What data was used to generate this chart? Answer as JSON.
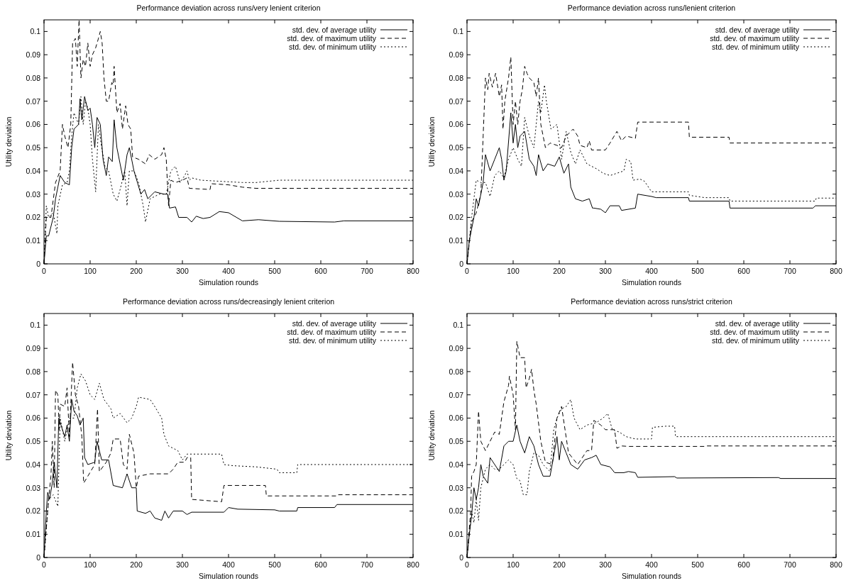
{
  "chart_data": [
    {
      "type": "line",
      "title": "Performance deviation across runs/very lenient criterion",
      "xlabel": "Simulation rounds",
      "ylabel": "Utility deviation",
      "xlim": [
        0,
        800
      ],
      "ylim": [
        0,
        0.105
      ],
      "xticks": [
        0,
        100,
        200,
        300,
        400,
        500,
        600,
        700,
        800
      ],
      "yticks": [
        0,
        0.01,
        0.02,
        0.03,
        0.04,
        0.05,
        0.06,
        0.07,
        0.08,
        0.09,
        0.1
      ],
      "legend": "top right",
      "series": [
        {
          "name": "std. dev. of average utility",
          "color": "#000000",
          "line_style": "solid",
          "x": [
            0,
            5,
            10,
            20,
            25,
            30,
            35,
            45,
            55,
            60,
            65,
            75,
            78,
            82,
            88,
            95,
            100,
            105,
            110,
            115,
            122,
            128,
            135,
            140,
            148,
            152,
            158,
            165,
            172,
            180,
            185,
            195,
            210,
            218,
            225,
            240,
            260,
            268,
            272,
            285,
            292,
            310,
            320,
            330,
            345,
            360,
            380,
            400,
            430,
            465,
            510,
            630,
            650,
            800
          ],
          "values": [
            0,
            0.012,
            0.012,
            0.02,
            0.028,
            0.033,
            0.038,
            0.035,
            0.034,
            0.05,
            0.058,
            0.06,
            0.071,
            0.062,
            0.072,
            0.066,
            0.067,
            0.06,
            0.05,
            0.063,
            0.06,
            0.045,
            0.038,
            0.046,
            0.044,
            0.062,
            0.05,
            0.043,
            0.036,
            0.047,
            0.05,
            0.04,
            0.03,
            0.032,
            0.028,
            0.031,
            0.03,
            0.03,
            0.024,
            0.0245,
            0.02,
            0.02,
            0.018,
            0.0205,
            0.0195,
            0.02,
            0.0225,
            0.022,
            0.0185,
            0.019,
            0.0183,
            0.018,
            0.0185,
            0.0185
          ]
        },
        {
          "name": "std. dev. of maximum utility",
          "color": "#000000",
          "line_style": "dashed",
          "x": [
            0,
            5,
            15,
            25,
            35,
            40,
            45,
            52,
            58,
            62,
            68,
            72,
            76,
            80,
            85,
            90,
            95,
            100,
            105,
            112,
            118,
            122,
            126,
            130,
            135,
            140,
            147,
            150,
            152,
            158,
            165,
            170,
            177,
            182,
            188,
            192,
            205,
            220,
            228,
            240,
            255,
            260,
            265,
            270,
            275,
            285,
            300,
            310,
            315,
            360,
            362,
            400,
            430,
            460,
            650,
            800
          ],
          "values": [
            0,
            0.02,
            0.02,
            0.035,
            0.04,
            0.06,
            0.055,
            0.05,
            0.06,
            0.095,
            0.097,
            0.085,
            0.105,
            0.08,
            0.088,
            0.085,
            0.095,
            0.085,
            0.09,
            0.093,
            0.097,
            0.1,
            0.095,
            0.08,
            0.07,
            0.07,
            0.078,
            0.077,
            0.085,
            0.065,
            0.069,
            0.058,
            0.068,
            0.06,
            0.058,
            0.046,
            0.045,
            0.043,
            0.047,
            0.045,
            0.047,
            0.05,
            0.045,
            0.025,
            0.036,
            0.035,
            0.036,
            0.037,
            0.0325,
            0.032,
            0.0345,
            0.034,
            0.033,
            0.0325,
            0.0325,
            0.0325
          ]
        },
        {
          "name": "std. dev. of minimum utility",
          "color": "#000000",
          "line_style": "dotted",
          "x": [
            0,
            5,
            10,
            20,
            28,
            30,
            40,
            50,
            55,
            60,
            65,
            75,
            80,
            85,
            90,
            95,
            100,
            105,
            110,
            112,
            118,
            125,
            132,
            140,
            150,
            158,
            165,
            175,
            180,
            185,
            195,
            205,
            215,
            220,
            230,
            250,
            265,
            275,
            285,
            295,
            305,
            310,
            315,
            320,
            340,
            430,
            460,
            510,
            800
          ],
          "values": [
            0,
            0.025,
            0.02,
            0.022,
            0.013,
            0.025,
            0.034,
            0.035,
            0.04,
            0.055,
            0.065,
            0.06,
            0.072,
            0.06,
            0.07,
            0.067,
            0.06,
            0.045,
            0.035,
            0.031,
            0.06,
            0.05,
            0.042,
            0.04,
            0.03,
            0.027,
            0.032,
            0.04,
            0.025,
            0.04,
            0.04,
            0.035,
            0.025,
            0.018,
            0.028,
            0.03,
            0.03,
            0.04,
            0.042,
            0.035,
            0.038,
            0.04,
            0.036,
            0.037,
            0.036,
            0.035,
            0.035,
            0.036,
            0.036
          ]
        }
      ]
    },
    {
      "type": "line",
      "title": "Performance deviation across runs/lenient criterion",
      "xlabel": "Simulation rounds",
      "ylabel": "Utility deviation",
      "xlim": [
        0,
        800
      ],
      "ylim": [
        0,
        0.105
      ],
      "xticks": [
        0,
        100,
        200,
        300,
        400,
        500,
        600,
        700,
        800
      ],
      "yticks": [
        0,
        0.01,
        0.02,
        0.03,
        0.04,
        0.05,
        0.06,
        0.07,
        0.08,
        0.09,
        0.1
      ],
      "legend": "top right",
      "series": [
        {
          "name": "std. dev. of average utility",
          "color": "#000000",
          "line_style": "solid",
          "x": [
            0,
            5,
            10,
            15,
            20,
            25,
            30,
            35,
            40,
            50,
            60,
            70,
            75,
            80,
            85,
            95,
            100,
            105,
            110,
            115,
            125,
            135,
            145,
            150,
            155,
            165,
            175,
            190,
            200,
            210,
            220,
            225,
            235,
            250,
            265,
            272,
            275,
            290,
            300,
            310,
            330,
            335,
            365,
            370,
            400,
            410,
            480,
            482,
            568,
            570,
            750,
            755,
            800
          ],
          "values": [
            0,
            0.01,
            0.015,
            0.02,
            0.028,
            0.025,
            0.03,
            0.035,
            0.047,
            0.04,
            0.045,
            0.05,
            0.045,
            0.036,
            0.04,
            0.065,
            0.052,
            0.06,
            0.05,
            0.055,
            0.057,
            0.045,
            0.042,
            0.038,
            0.047,
            0.04,
            0.043,
            0.042,
            0.046,
            0.039,
            0.043,
            0.033,
            0.028,
            0.027,
            0.028,
            0.024,
            0.024,
            0.0235,
            0.022,
            0.025,
            0.025,
            0.023,
            0.024,
            0.03,
            0.029,
            0.0285,
            0.0285,
            0.027,
            0.027,
            0.024,
            0.024,
            0.025,
            0.025
          ]
        },
        {
          "name": "std. dev. of maximum utility",
          "color": "#000000",
          "line_style": "dashed",
          "x": [
            0,
            10,
            20,
            30,
            35,
            40,
            45,
            48,
            55,
            62,
            70,
            75,
            78,
            82,
            90,
            95,
            100,
            105,
            110,
            115,
            120,
            125,
            130,
            135,
            145,
            150,
            155,
            160,
            170,
            180,
            195,
            205,
            215,
            230,
            240,
            245,
            260,
            265,
            270,
            300,
            310,
            325,
            335,
            345,
            365,
            370,
            480,
            482,
            568,
            570,
            800
          ],
          "values": [
            0,
            0.018,
            0.022,
            0.03,
            0.055,
            0.08,
            0.075,
            0.082,
            0.076,
            0.082,
            0.072,
            0.077,
            0.058,
            0.07,
            0.08,
            0.089,
            0.06,
            0.07,
            0.06,
            0.07,
            0.075,
            0.085,
            0.082,
            0.08,
            0.078,
            0.072,
            0.08,
            0.06,
            0.05,
            0.052,
            0.051,
            0.05,
            0.055,
            0.058,
            0.055,
            0.051,
            0.05,
            0.053,
            0.049,
            0.049,
            0.052,
            0.057,
            0.053,
            0.055,
            0.054,
            0.061,
            0.061,
            0.0545,
            0.0545,
            0.052,
            0.052
          ]
        },
        {
          "name": "std. dev. of minimum utility",
          "color": "#000000",
          "line_style": "dotted",
          "x": [
            0,
            10,
            20,
            30,
            40,
            50,
            60,
            70,
            80,
            90,
            100,
            110,
            118,
            125,
            135,
            145,
            155,
            160,
            168,
            172,
            182,
            195,
            205,
            215,
            225,
            235,
            245,
            260,
            280,
            295,
            310,
            340,
            345,
            355,
            360,
            375,
            385,
            400,
            480,
            482,
            515,
            568,
            570,
            755,
            757,
            800
          ],
          "values": [
            0,
            0.02,
            0.036,
            0.035,
            0.035,
            0.029,
            0.038,
            0.04,
            0.037,
            0.045,
            0.05,
            0.045,
            0.042,
            0.063,
            0.055,
            0.05,
            0.07,
            0.065,
            0.077,
            0.07,
            0.058,
            0.06,
            0.045,
            0.057,
            0.048,
            0.043,
            0.049,
            0.043,
            0.041,
            0.039,
            0.038,
            0.04,
            0.045,
            0.044,
            0.036,
            0.0365,
            0.0355,
            0.031,
            0.031,
            0.0295,
            0.0285,
            0.0285,
            0.027,
            0.027,
            0.0283,
            0.0283
          ]
        }
      ]
    },
    {
      "type": "line",
      "title": "Performance deviation across runs/decreasingly lenient criterion",
      "xlabel": "Simulation rounds",
      "ylabel": "Utility deviation",
      "xlim": [
        0,
        800
      ],
      "ylim": [
        0,
        0.105
      ],
      "xticks": [
        0,
        100,
        200,
        300,
        400,
        500,
        600,
        700,
        800
      ],
      "yticks": [
        0,
        0.01,
        0.02,
        0.03,
        0.04,
        0.05,
        0.06,
        0.07,
        0.08,
        0.09,
        0.1
      ],
      "legend": "top right",
      "series": [
        {
          "name": "std. dev. of average utility",
          "color": "#000000",
          "line_style": "solid",
          "x": [
            0,
            5,
            8,
            12,
            18,
            22,
            28,
            32,
            40,
            45,
            50,
            55,
            60,
            65,
            72,
            78,
            85,
            88,
            95,
            110,
            115,
            125,
            140,
            150,
            170,
            180,
            190,
            200,
            202,
            220,
            230,
            240,
            255,
            262,
            270,
            280,
            300,
            310,
            320,
            390,
            400,
            420,
            500,
            510,
            548,
            550,
            630,
            635,
            800
          ],
          "values": [
            0,
            0.02,
            0.028,
            0.025,
            0.032,
            0.041,
            0.03,
            0.06,
            0.055,
            0.052,
            0.057,
            0.05,
            0.068,
            0.063,
            0.061,
            0.057,
            0.06,
            0.043,
            0.04,
            0.041,
            0.05,
            0.042,
            0.042,
            0.031,
            0.03,
            0.036,
            0.03,
            0.03,
            0.02,
            0.019,
            0.02,
            0.017,
            0.016,
            0.02,
            0.017,
            0.02,
            0.02,
            0.0185,
            0.0195,
            0.0195,
            0.0215,
            0.0208,
            0.0205,
            0.02,
            0.02,
            0.0215,
            0.0215,
            0.0228,
            0.0228
          ]
        },
        {
          "name": "std. dev. of maximum utility",
          "color": "#000000",
          "line_style": "dashed",
          "x": [
            0,
            10,
            15,
            18,
            22,
            25,
            30,
            33,
            35,
            45,
            50,
            55,
            62,
            68,
            75,
            82,
            86,
            95,
            110,
            116,
            120,
            135,
            145,
            150,
            165,
            172,
            180,
            185,
            195,
            200,
            205,
            230,
            270,
            280,
            290,
            305,
            310,
            318,
            320,
            385,
            390,
            480,
            482,
            635,
            637,
            800
          ],
          "values": [
            0,
            0.025,
            0.035,
            0.05,
            0.03,
            0.072,
            0.07,
            0.055,
            0.066,
            0.065,
            0.073,
            0.052,
            0.084,
            0.07,
            0.065,
            0.052,
            0.032,
            0.035,
            0.04,
            0.064,
            0.037,
            0.041,
            0.045,
            0.051,
            0.051,
            0.04,
            0.038,
            0.053,
            0.045,
            0.03,
            0.035,
            0.036,
            0.036,
            0.038,
            0.041,
            0.041,
            0.043,
            0.043,
            0.025,
            0.024,
            0.031,
            0.031,
            0.0265,
            0.0265,
            0.027,
            0.027
          ]
        },
        {
          "name": "std. dev. of minimum utility",
          "color": "#000000",
          "line_style": "dotted",
          "x": [
            0,
            10,
            20,
            30,
            35,
            45,
            55,
            65,
            72,
            80,
            90,
            100,
            110,
            120,
            130,
            145,
            150,
            165,
            180,
            190,
            200,
            205,
            230,
            240,
            255,
            260,
            270,
            290,
            300,
            310,
            385,
            390,
            410,
            460,
            505,
            510,
            548,
            550,
            800
          ],
          "values": [
            0,
            0.025,
            0.027,
            0.022,
            0.06,
            0.05,
            0.06,
            0.06,
            0.073,
            0.079,
            0.076,
            0.07,
            0.068,
            0.075,
            0.068,
            0.064,
            0.06,
            0.062,
            0.058,
            0.06,
            0.065,
            0.069,
            0.068,
            0.065,
            0.06,
            0.053,
            0.048,
            0.046,
            0.042,
            0.0445,
            0.0445,
            0.04,
            0.0395,
            0.039,
            0.038,
            0.0365,
            0.0365,
            0.04,
            0.04
          ]
        }
      ]
    },
    {
      "type": "line",
      "title": "Performance deviation across runs/strict criterion",
      "xlabel": "Simulation rounds",
      "ylabel": "Utility deviation",
      "xlim": [
        0,
        800
      ],
      "ylim": [
        0,
        0.105
      ],
      "xticks": [
        0,
        100,
        200,
        300,
        400,
        500,
        600,
        700,
        800
      ],
      "yticks": [
        0,
        0.01,
        0.02,
        0.03,
        0.04,
        0.05,
        0.06,
        0.07,
        0.08,
        0.09,
        0.1
      ],
      "legend": "top right",
      "series": [
        {
          "name": "std. dev. of average utility",
          "color": "#000000",
          "line_style": "solid",
          "x": [
            0,
            5,
            10,
            15,
            20,
            25,
            30,
            35,
            45,
            50,
            60,
            70,
            80,
            90,
            100,
            108,
            115,
            125,
            135,
            145,
            155,
            165,
            180,
            190,
            195,
            200,
            205,
            215,
            225,
            240,
            255,
            270,
            280,
            290,
            310,
            320,
            340,
            350,
            365,
            370,
            450,
            455,
            675,
            680,
            800
          ],
          "values": [
            0,
            0.01,
            0.018,
            0.03,
            0.025,
            0.03,
            0.04,
            0.035,
            0.032,
            0.043,
            0.04,
            0.037,
            0.048,
            0.05,
            0.05,
            0.057,
            0.05,
            0.045,
            0.052,
            0.048,
            0.04,
            0.035,
            0.035,
            0.046,
            0.052,
            0.042,
            0.05,
            0.045,
            0.04,
            0.038,
            0.042,
            0.043,
            0.044,
            0.04,
            0.039,
            0.0365,
            0.0365,
            0.037,
            0.0365,
            0.0345,
            0.0348,
            0.0342,
            0.0344,
            0.034,
            0.034
          ]
        },
        {
          "name": "std. dev. of maximum utility",
          "color": "#000000",
          "line_style": "dashed",
          "x": [
            0,
            8,
            10,
            15,
            20,
            25,
            28,
            30,
            40,
            50,
            60,
            70,
            80,
            90,
            92,
            100,
            105,
            108,
            115,
            125,
            128,
            135,
            140,
            145,
            150,
            160,
            170,
            185,
            195,
            205,
            220,
            240,
            250,
            260,
            270,
            275,
            290,
            300,
            320,
            325,
            335,
            350,
            515,
            520,
            800
          ],
          "values": [
            0,
            0.02,
            0.035,
            0.037,
            0.04,
            0.063,
            0.055,
            0.05,
            0.046,
            0.05,
            0.054,
            0.053,
            0.067,
            0.074,
            0.078,
            0.07,
            0.055,
            0.093,
            0.086,
            0.086,
            0.073,
            0.077,
            0.081,
            0.072,
            0.066,
            0.05,
            0.041,
            0.04,
            0.06,
            0.065,
            0.045,
            0.04,
            0.043,
            0.046,
            0.046,
            0.059,
            0.057,
            0.055,
            0.055,
            0.047,
            0.048,
            0.0478,
            0.0478,
            0.048,
            0.048
          ]
        },
        {
          "name": "std. dev. of minimum utility",
          "color": "#000000",
          "line_style": "dotted",
          "x": [
            0,
            10,
            15,
            20,
            25,
            30,
            40,
            50,
            60,
            70,
            80,
            90,
            100,
            108,
            115,
            122,
            130,
            135,
            145,
            155,
            165,
            180,
            188,
            195,
            205,
            215,
            225,
            232,
            245,
            260,
            280,
            295,
            305,
            315,
            330,
            345,
            365,
            400,
            402,
            430,
            450,
            452,
            800
          ],
          "values": [
            0,
            0.02,
            0.015,
            0.025,
            0.016,
            0.03,
            0.038,
            0.04,
            0.038,
            0.038,
            0.04,
            0.042,
            0.04,
            0.034,
            0.033,
            0.027,
            0.027,
            0.037,
            0.045,
            0.044,
            0.04,
            0.037,
            0.055,
            0.06,
            0.064,
            0.065,
            0.068,
            0.06,
            0.055,
            0.057,
            0.058,
            0.06,
            0.062,
            0.055,
            0.054,
            0.052,
            0.051,
            0.051,
            0.056,
            0.0565,
            0.0565,
            0.052,
            0.052
          ]
        }
      ]
    }
  ]
}
